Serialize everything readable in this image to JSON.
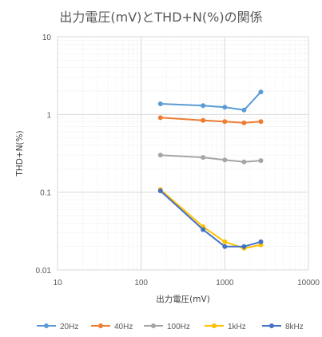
{
  "chart_data": {
    "type": "line",
    "title": "出力電圧(mV)とTHD+N(%)の関係",
    "xlabel": "出力電圧(mV)",
    "ylabel": "THD+N(%)",
    "xscale": "log",
    "yscale": "log",
    "xlim": [
      10,
      10000
    ],
    "ylim": [
      0.01,
      10
    ],
    "xticks": [
      "10",
      "100",
      "1000",
      "10000"
    ],
    "yticks": [
      "0.01",
      "0.1",
      "1",
      "10"
    ],
    "grid": true,
    "legend_position": "bottom",
    "x": [
      170,
      550,
      1000,
      1700,
      2700
    ],
    "series": [
      {
        "name": "20Hz",
        "color": "#5b9bd5",
        "values": [
          1.37,
          1.3,
          1.24,
          1.14,
          1.95
        ]
      },
      {
        "name": "40Hz",
        "color": "#ed7d31",
        "values": [
          0.91,
          0.84,
          0.81,
          0.78,
          0.81
        ]
      },
      {
        "name": "100Hz",
        "color": "#a5a5a5",
        "values": [
          0.3,
          0.28,
          0.26,
          0.245,
          0.255
        ]
      },
      {
        "name": "1kHz",
        "color": "#ffc000",
        "values": [
          0.108,
          0.036,
          0.023,
          0.019,
          0.021
        ]
      },
      {
        "name": "8kHz",
        "color": "#4472c4",
        "values": [
          0.104,
          0.033,
          0.02,
          0.02,
          0.023
        ]
      }
    ]
  }
}
